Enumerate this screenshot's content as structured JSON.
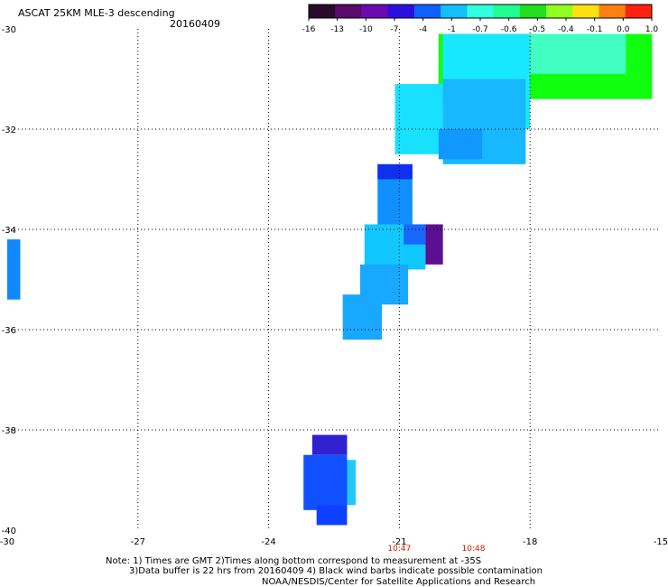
{
  "header": {
    "title": "ASCAT 25KM MLE-3 descending",
    "date": "20160409"
  },
  "colorbar": {
    "labels": [
      "-16",
      "-13",
      "-10",
      "-7",
      "-4",
      "-1",
      "-0.7",
      "-0.6",
      "-0.5",
      "-0.4",
      "-0.1",
      "0.0",
      "1.0"
    ],
    "colors": [
      "#2a0a2a",
      "#5a0a6a",
      "#6a0ab0",
      "#2a10e0",
      "#1060ff",
      "#10c0ff",
      "#30ffe0",
      "#20ff90",
      "#20e020",
      "#90ff20",
      "#ffe010",
      "#ff8010",
      "#ff2010"
    ]
  },
  "axes": {
    "x_ticks": [
      "-30",
      "-27",
      "-24",
      "-21",
      "-18",
      "-15"
    ],
    "y_ticks": [
      "-30",
      "-32",
      "-34",
      "-36",
      "-38",
      "-40"
    ],
    "grid": "dotted",
    "xlim": [
      -30,
      -15
    ],
    "ylim": [
      -40,
      -30
    ]
  },
  "time_labels": [
    {
      "lon": -21,
      "text": "10:47"
    },
    {
      "lon": -19.3,
      "text": "10:48"
    }
  ],
  "footer": {
    "note1": "Note: 1) Times are GMT 2)Times along bottom correspond to measurement at -35S",
    "note2": "3)Data buffer is 22 hrs from 20160409 4) Black wind barbs indicate possible contamination",
    "note3": "NOAA/NESDIS/Center for Satellite Applications and Research"
  },
  "swaths": [
    {
      "lon_min": -20.1,
      "lon_max": -15.2,
      "lat_min": -31.4,
      "lat_max": -30.1,
      "color": "#10ff10"
    },
    {
      "lon_min": -18.0,
      "lon_max": -15.8,
      "lat_min": -30.9,
      "lat_max": -30.1,
      "color": "#40ffc0"
    },
    {
      "lon_min": -20.0,
      "lon_max": -18.0,
      "lat_min": -32.0,
      "lat_max": -30.1,
      "color": "#18e8ff"
    },
    {
      "lon_min": -21.1,
      "lon_max": -20.0,
      "lat_min": -32.5,
      "lat_max": -31.1,
      "color": "#18e0ff"
    },
    {
      "lon_min": -20.0,
      "lon_max": -18.1,
      "lat_min": -32.7,
      "lat_max": -31.0,
      "color": "#18b8ff"
    },
    {
      "lon_min": -20.1,
      "lon_max": -19.1,
      "lat_min": -32.6,
      "lat_max": -32.0,
      "color": "#1098ff"
    },
    {
      "lon_min": -21.5,
      "lon_max": -20.7,
      "lat_min": -34.0,
      "lat_max": -32.7,
      "color": "#1090ff"
    },
    {
      "lon_min": -21.5,
      "lon_max": -20.7,
      "lat_min": -33.0,
      "lat_max": -32.7,
      "color": "#1030f0"
    },
    {
      "lon_min": -21.8,
      "lon_max": -20.4,
      "lat_min": -34.8,
      "lat_max": -33.9,
      "color": "#10c8ff"
    },
    {
      "lon_min": -20.9,
      "lon_max": -20.4,
      "lat_min": -34.3,
      "lat_max": -33.9,
      "color": "#1868ff"
    },
    {
      "lon_min": -20.4,
      "lon_max": -20.0,
      "lat_min": -34.7,
      "lat_max": -33.9,
      "color": "#5a1090"
    },
    {
      "lon_min": -21.9,
      "lon_max": -20.8,
      "lat_min": -35.5,
      "lat_max": -34.7,
      "color": "#18a8ff"
    },
    {
      "lon_min": -22.3,
      "lon_max": -21.4,
      "lat_min": -36.2,
      "lat_max": -35.3,
      "color": "#18a8ff"
    },
    {
      "lon_min": -30.0,
      "lon_max": -29.7,
      "lat_min": -35.4,
      "lat_max": -34.2,
      "color": "#1088ff"
    },
    {
      "lon_min": -23.0,
      "lon_max": -22.2,
      "lat_min": -38.5,
      "lat_max": -38.1,
      "color": "#3020d0"
    },
    {
      "lon_min": -23.2,
      "lon_max": -22.2,
      "lat_min": -39.6,
      "lat_max": -38.5,
      "color": "#1050ff"
    },
    {
      "lon_min": -22.9,
      "lon_max": -22.2,
      "lat_min": -39.9,
      "lat_max": -39.5,
      "color": "#1040ff"
    },
    {
      "lon_min": -22.2,
      "lon_max": -22.0,
      "lat_min": -39.5,
      "lat_max": -38.6,
      "color": "#20c8ff"
    }
  ]
}
